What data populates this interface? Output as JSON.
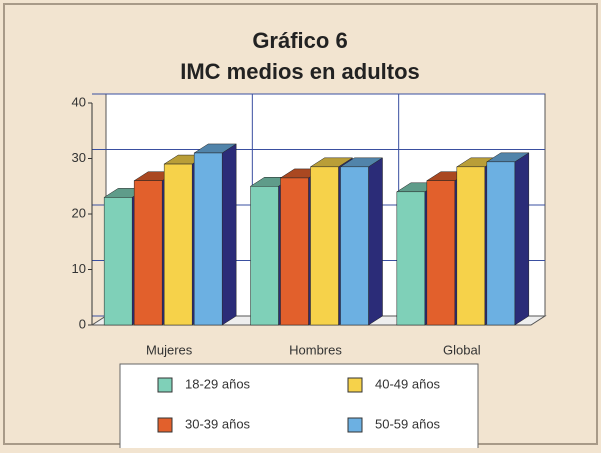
{
  "chart_data": {
    "type": "bar3d",
    "title": "Gráfico 6",
    "subtitle": "IMC medios en adultos",
    "categories": [
      "Mujeres",
      "Hombres",
      "Global"
    ],
    "series": [
      {
        "name": "18-29 años",
        "color": "#7fd0b8",
        "values": [
          23,
          25,
          24
        ]
      },
      {
        "name": "30-39 años",
        "color": "#e2602c",
        "values": [
          26,
          26.5,
          26
        ]
      },
      {
        "name": "40-49 años",
        "color": "#f6d24a",
        "values": [
          29,
          28.5,
          28.5
        ]
      },
      {
        "name": "50-59 años",
        "color": "#6cb0e2",
        "values": [
          31,
          28.5,
          29.4
        ]
      }
    ],
    "ylim": [
      0,
      40
    ],
    "yticks": [
      0,
      10,
      20,
      30,
      40
    ],
    "grid": true
  }
}
